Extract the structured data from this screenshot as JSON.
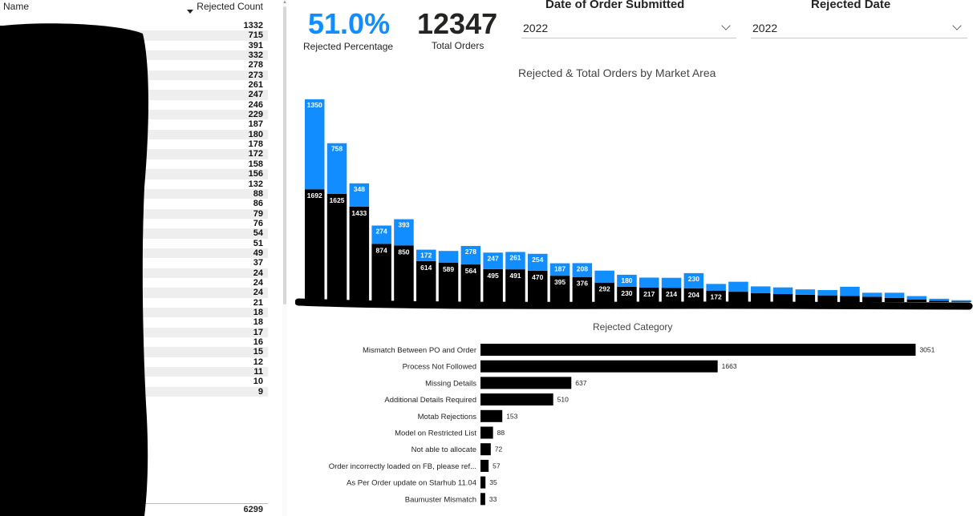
{
  "table": {
    "col_name": "Name",
    "col_count": "Rejected Count",
    "counts": [
      "1332",
      "715",
      "391",
      "332",
      "278",
      "273",
      "261",
      "247",
      "246",
      "229",
      "187",
      "180",
      "178",
      "172",
      "158",
      "156",
      "132",
      "88",
      "86",
      "79",
      "76",
      "54",
      "51",
      "49",
      "37",
      "24",
      "24",
      "24",
      "21",
      "18",
      "18",
      "17",
      "16",
      "15",
      "12",
      "11",
      "10",
      "9"
    ],
    "total": "6299"
  },
  "kpis": {
    "rejected_pct": "51.0%",
    "rejected_pct_label": "Rejected Percentage",
    "total_orders": "12347",
    "total_orders_label": "Total Orders"
  },
  "slicers": {
    "order_date_title": "Date of Order Submitted",
    "order_date_value": "2022",
    "rejected_date_title": "Rejected Date",
    "rejected_date_value": "2022"
  },
  "colors": {
    "rejected": "#118DFF",
    "total": "#000000",
    "accent": "#118DFF"
  },
  "chart_data": [
    {
      "type": "bar",
      "stacked": true,
      "title": "Rejected & Total Orders by Market Area",
      "xlabel": "",
      "ylabel": "",
      "series": [
        {
          "values": [
            1692,
            1625,
            1433,
            874,
            850,
            614,
            589,
            564,
            495,
            491,
            470,
            395,
            376,
            292,
            230,
            217,
            214,
            204,
            172,
            155,
            135,
            120,
            110,
            100,
            90,
            80,
            60,
            40,
            20,
            8
          ],
          "labels": [
            "1692",
            "1625",
            "1433",
            "874",
            "850",
            "614",
            "589",
            "564",
            "495",
            "491",
            "470",
            "395",
            "376",
            "292",
            "230",
            "217",
            "214",
            "204",
            "172",
            "",
            "",
            "",
            "",
            "",
            "",
            "",
            "",
            "",
            "",
            ""
          ]
        },
        {
          "values": [
            1350,
            758,
            348,
            274,
            393,
            172,
            178,
            278,
            247,
            261,
            254,
            187,
            208,
            180,
            180,
            150,
            150,
            230,
            100,
            150,
            100,
            100,
            80,
            80,
            140,
            60,
            80,
            50,
            30,
            20
          ],
          "labels": [
            "1350",
            "758",
            "348",
            "274",
            "393",
            "172",
            "",
            "278",
            "247",
            "261",
            "254",
            "187",
            "208",
            "",
            "180",
            "",
            "",
            "230",
            "",
            "",
            "",
            "",
            "",
            "",
            "",
            "",
            "",
            "",
            "",
            ""
          ]
        }
      ]
    },
    {
      "type": "bar",
      "orientation": "horizontal",
      "title": "Rejected Category",
      "categories": [
        "Mismatch Between PO and Order",
        "Process Not Followed",
        "Missing Details",
        "Additional Details Required",
        "Motab Rejections",
        "Model on Restricted List",
        "Not able to allocate",
        "Order incorrectly loaded on FB, please ref...",
        "As Per Order update on Starhub 11.04",
        "Baumuster Mismatch"
      ],
      "values": [
        3051,
        1663,
        637,
        510,
        153,
        88,
        72,
        57,
        35,
        33
      ],
      "value_labels": [
        "3051",
        "1663",
        "637",
        "510",
        "153",
        "88",
        "72",
        "57",
        "35",
        "33"
      ]
    }
  ]
}
